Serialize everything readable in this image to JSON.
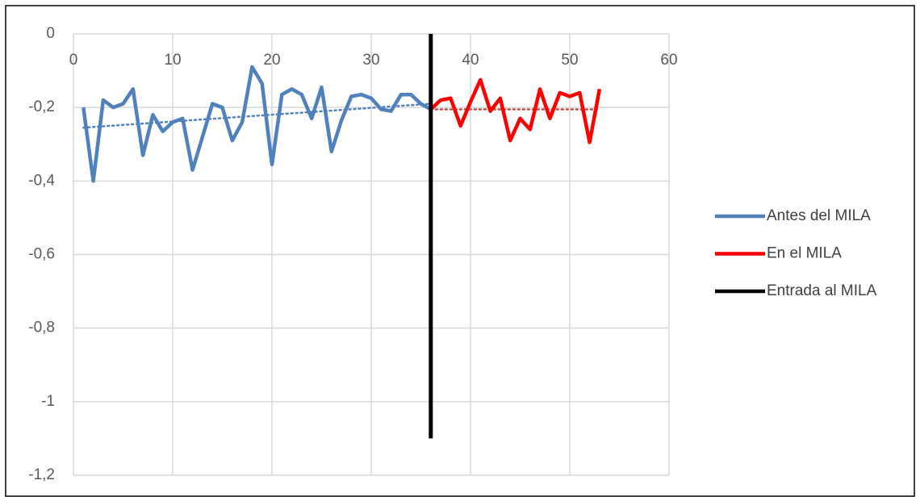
{
  "chart_data": {
    "type": "line",
    "xlim": [
      0,
      60
    ],
    "xticks": [
      0,
      10,
      20,
      30,
      40,
      50,
      60
    ],
    "ylim": [
      -1.2,
      0
    ],
    "yticks": [
      {
        "value": -1.2,
        "label": "-1,2"
      },
      {
        "value": -1,
        "label": "-1"
      },
      {
        "value": -0.8,
        "label": "-0,8"
      },
      {
        "value": -0.6,
        "label": "-0,6"
      },
      {
        "value": -0.4,
        "label": "-0,4"
      },
      {
        "value": -0.2,
        "label": "-0,2"
      },
      0
    ],
    "grid": true,
    "legend": "right",
    "series": [
      {
        "name": "Antes del MILA",
        "color": "#4f81bd",
        "x": [
          1,
          2,
          3,
          4,
          5,
          6,
          7,
          8,
          9,
          10,
          11,
          12,
          13,
          14,
          15,
          16,
          17,
          18,
          19,
          20,
          21,
          22,
          23,
          24,
          25,
          26,
          27,
          28,
          29,
          30,
          31,
          32,
          33,
          34,
          35,
          36
        ],
        "values": [
          -0.2,
          -0.4,
          -0.18,
          -0.2,
          -0.19,
          -0.15,
          -0.33,
          -0.22,
          -0.265,
          -0.24,
          -0.23,
          -0.37,
          -0.28,
          -0.19,
          -0.2,
          -0.29,
          -0.24,
          -0.09,
          -0.135,
          -0.355,
          -0.165,
          -0.15,
          -0.165,
          -0.23,
          -0.145,
          -0.32,
          -0.235,
          -0.17,
          -0.165,
          -0.175,
          -0.205,
          -0.21,
          -0.165,
          -0.165,
          -0.19,
          -0.205
        ]
      },
      {
        "name": "En el MILA",
        "color": "#ff0000",
        "x": [
          36,
          37,
          38,
          39,
          40,
          41,
          42,
          43,
          44,
          45,
          46,
          47,
          48,
          49,
          50,
          51,
          52,
          53
        ],
        "values": [
          -0.205,
          -0.18,
          -0.175,
          -0.25,
          -0.185,
          -0.125,
          -0.21,
          -0.175,
          -0.29,
          -0.23,
          -0.26,
          -0.15,
          -0.23,
          -0.16,
          -0.17,
          -0.16,
          -0.295,
          -0.15
        ]
      },
      {
        "name": "Entrada al MILA",
        "color": "#000000",
        "x": [
          36,
          36
        ],
        "values": [
          0,
          -1.1
        ]
      }
    ],
    "trendlines": [
      {
        "color": "#4f81bd",
        "x": [
          1,
          36
        ],
        "values": [
          -0.255,
          -0.19
        ]
      },
      {
        "color": "#c0504d",
        "x": [
          36,
          53
        ],
        "values": [
          -0.205,
          -0.205
        ]
      }
    ]
  }
}
